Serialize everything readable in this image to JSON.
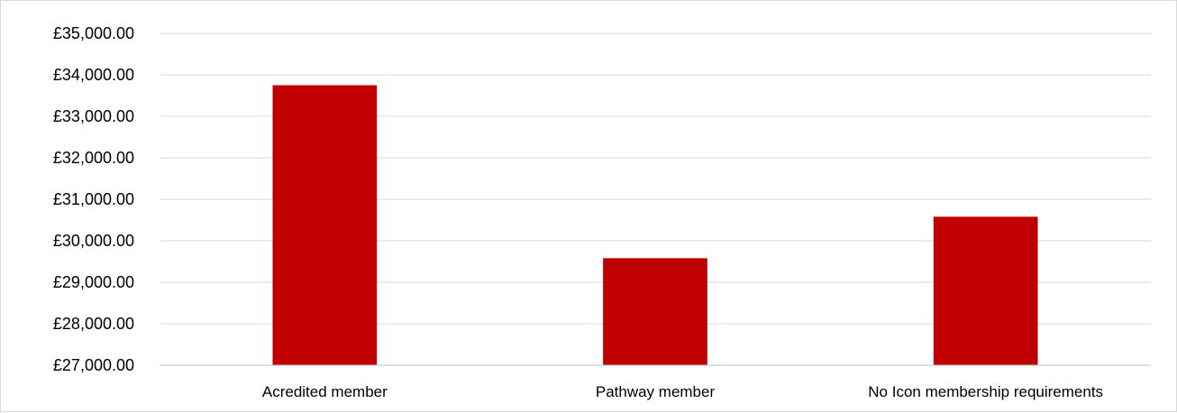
{
  "chart_data": {
    "type": "bar",
    "title": "",
    "xlabel": "",
    "ylabel": "",
    "categories": [
      "Acredited member",
      "Pathway member",
      "No Icon membership requirements"
    ],
    "series": [
      {
        "values": [
          33750,
          29580,
          30580
        ]
      }
    ],
    "ylim": [
      27000,
      35000
    ],
    "yticks": [
      35000,
      34000,
      33000,
      32000,
      31000,
      30000,
      29000,
      28000,
      27000
    ],
    "ytick_labels": [
      "£35,000.00",
      "£34,000.00",
      "£33,000.00",
      "£32,000.00",
      "£31,000.00",
      "£30,000.00",
      "£29,000.00",
      "£28,000.00",
      "£27,000.00"
    ],
    "grid": true,
    "legend": "none",
    "colors": {
      "bar": "#c00000",
      "grid": "#d9d9d9",
      "axis": "#bfbfbf"
    }
  }
}
